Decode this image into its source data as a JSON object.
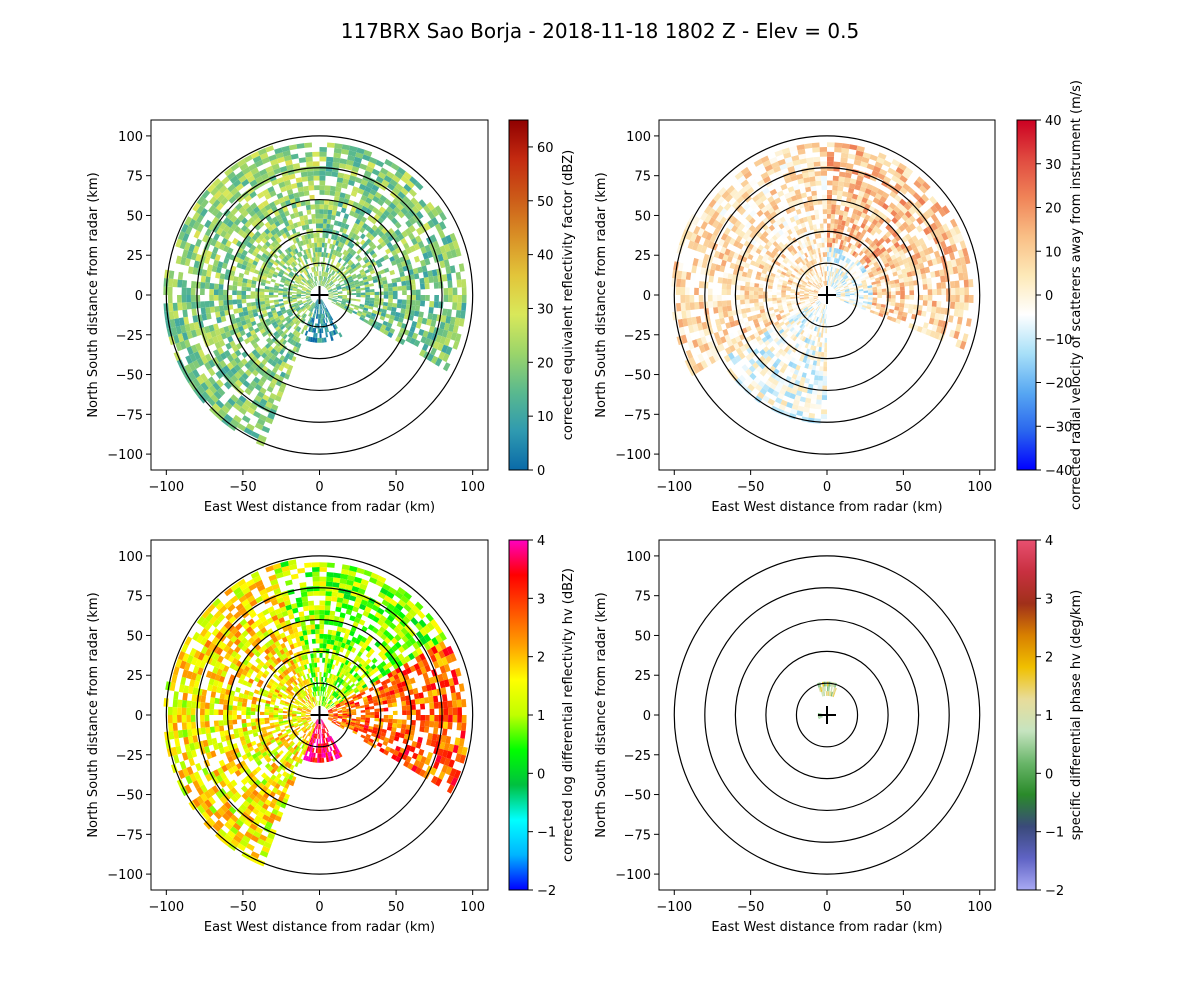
{
  "figure": {
    "title": "117BRX Sao Borja - 2018-11-18 1802 Z -  Elev = 0.5"
  },
  "chart_data": [
    {
      "type": "heatmap",
      "subtype": "radar-ppi",
      "id": "reflectivity",
      "xlabel": "East West distance from radar (km)",
      "ylabel": "North South distance from radar (km)",
      "xlim": [
        -110,
        110
      ],
      "ylim": [
        -110,
        110
      ],
      "xticks": [
        -100,
        -50,
        0,
        50,
        100
      ],
      "yticks": [
        -100,
        -75,
        -50,
        -25,
        0,
        25,
        50,
        75,
        100
      ],
      "range_rings_km": [
        20,
        40,
        60,
        80,
        100
      ],
      "colorbar": {
        "label": "corrected equivalent reflectivity factor (dBZ)",
        "min": 0,
        "max": 65,
        "ticks": [
          0,
          10,
          20,
          30,
          40,
          50,
          60
        ],
        "colors": [
          "#0a6aa8",
          "#2f9ab0",
          "#5ab98e",
          "#9bd56a",
          "#d9e85a",
          "#e2c53a",
          "#d99026",
          "#cc5a18",
          "#c42a10",
          "#8f0000"
        ]
      },
      "echo_sectors": [
        {
          "az_from": 200,
          "az_to": 280,
          "r_from": 5,
          "r_to": 100,
          "level": 0.3
        },
        {
          "az_from": 280,
          "az_to": 340,
          "r_from": 5,
          "r_to": 98,
          "level": 0.33
        },
        {
          "az_from": 340,
          "az_to": 360,
          "r_from": 5,
          "r_to": 95,
          "level": 0.35
        },
        {
          "az_from": 0,
          "az_to": 60,
          "r_from": 5,
          "r_to": 95,
          "level": 0.3
        },
        {
          "az_from": 60,
          "az_to": 100,
          "r_from": 5,
          "r_to": 95,
          "level": 0.28
        },
        {
          "az_from": 100,
          "az_to": 120,
          "r_from": 5,
          "r_to": 95,
          "level": 0.27
        },
        {
          "az_from": 150,
          "az_to": 210,
          "r_from": 2,
          "r_to": 30,
          "level": 0.1
        }
      ]
    },
    {
      "type": "heatmap",
      "subtype": "radar-ppi",
      "id": "velocity",
      "xlabel": "East West distance from radar (km)",
      "ylabel": "North South distance from radar (km)",
      "xlim": [
        -110,
        110
      ],
      "ylim": [
        -110,
        110
      ],
      "xticks": [
        -100,
        -50,
        0,
        50,
        100
      ],
      "yticks": [
        -100,
        -75,
        -50,
        -25,
        0,
        25,
        50,
        75,
        100
      ],
      "range_rings_km": [
        20,
        40,
        60,
        80,
        100
      ],
      "colorbar": {
        "label": "corrected radial velocity of scatterers away from instrument (m/s)",
        "min": -40,
        "max": 40,
        "ticks": [
          -40,
          -30,
          -20,
          -10,
          0,
          10,
          20,
          30,
          40
        ],
        "colors": [
          "#0000ff",
          "#2a66ee",
          "#58a8f2",
          "#a8e0f8",
          "#ffffff",
          "#fde9b8",
          "#f9bf86",
          "#f08458",
          "#e04a40",
          "#cc0022"
        ]
      },
      "echo_sectors": [
        {
          "az_from": 240,
          "az_to": 300,
          "r_from": 5,
          "r_to": 100,
          "level": 0.58
        },
        {
          "az_from": 300,
          "az_to": 360,
          "r_from": 5,
          "r_to": 95,
          "level": 0.56
        },
        {
          "az_from": 0,
          "az_to": 60,
          "r_from": 30,
          "r_to": 95,
          "level": 0.66
        },
        {
          "az_from": 60,
          "az_to": 110,
          "r_from": 30,
          "r_to": 95,
          "level": 0.62
        },
        {
          "az_from": 180,
          "az_to": 240,
          "r_from": 5,
          "r_to": 80,
          "level": 0.45
        },
        {
          "az_from": 0,
          "az_to": 110,
          "r_from": 5,
          "r_to": 30,
          "level": 0.44
        }
      ]
    },
    {
      "type": "heatmap",
      "subtype": "radar-ppi",
      "id": "differential_reflectivity",
      "xlabel": "East West distance from radar (km)",
      "ylabel": "North South distance from radar (km)",
      "xlim": [
        -110,
        110
      ],
      "ylim": [
        -110,
        110
      ],
      "xticks": [
        -100,
        -50,
        0,
        50,
        100
      ],
      "yticks": [
        -100,
        -75,
        -50,
        -25,
        0,
        25,
        50,
        75,
        100
      ],
      "range_rings_km": [
        20,
        40,
        60,
        80,
        100
      ],
      "colorbar": {
        "label": "corrected log differential reflectivity hv (dBZ)",
        "min": -2,
        "max": 4,
        "ticks": [
          -2,
          -1,
          0,
          1,
          2,
          3,
          4
        ],
        "colors": [
          "#0000ff",
          "#00b4ff",
          "#00ffff",
          "#00c040",
          "#00ff00",
          "#c0ff00",
          "#ffff00",
          "#ffa000",
          "#ff5000",
          "#ff0000",
          "#ff00c0"
        ]
      },
      "echo_sectors": [
        {
          "az_from": 200,
          "az_to": 280,
          "r_from": 5,
          "r_to": 100,
          "level": 0.6
        },
        {
          "az_from": 280,
          "az_to": 340,
          "r_from": 5,
          "r_to": 98,
          "level": 0.62
        },
        {
          "az_from": 340,
          "az_to": 360,
          "r_from": 5,
          "r_to": 97,
          "level": 0.5
        },
        {
          "az_from": 0,
          "az_to": 60,
          "r_from": 5,
          "r_to": 95,
          "level": 0.48
        },
        {
          "az_from": 60,
          "az_to": 100,
          "r_from": 5,
          "r_to": 95,
          "level": 0.78
        },
        {
          "az_from": 100,
          "az_to": 120,
          "r_from": 5,
          "r_to": 98,
          "level": 0.8
        },
        {
          "az_from": 150,
          "az_to": 210,
          "r_from": 2,
          "r_to": 30,
          "level": 0.95
        }
      ]
    },
    {
      "type": "heatmap",
      "subtype": "radar-ppi",
      "id": "specific_differential_phase",
      "xlabel": "East West distance from radar (km)",
      "ylabel": "North South distance from radar (km)",
      "xlim": [
        -110,
        110
      ],
      "ylim": [
        -110,
        110
      ],
      "xticks": [
        -100,
        -50,
        0,
        50,
        100
      ],
      "yticks": [
        -100,
        -75,
        -50,
        -25,
        0,
        25,
        50,
        75,
        100
      ],
      "range_rings_km": [
        20,
        40,
        60,
        80,
        100
      ],
      "colorbar": {
        "label": "specific differential phase hv (deg/km)",
        "min": -2,
        "max": 4,
        "ticks": [
          -2,
          -1,
          0,
          1,
          2,
          3,
          4
        ],
        "colors": [
          "#a9a9f4",
          "#5f63c4",
          "#3a4a7a",
          "#2a8a2a",
          "#6ab66a",
          "#c6e4c0",
          "#e8dc9a",
          "#f0c000",
          "#d88000",
          "#a0301a",
          "#c83040",
          "#e85070"
        ]
      },
      "echo_sectors": [
        {
          "az_from": 340,
          "az_to": 20,
          "r_from": 12,
          "r_to": 20,
          "level": 0.5
        },
        {
          "az_from": 240,
          "az_to": 280,
          "r_from": 1,
          "r_to": 6,
          "level": 0.38
        }
      ]
    }
  ]
}
